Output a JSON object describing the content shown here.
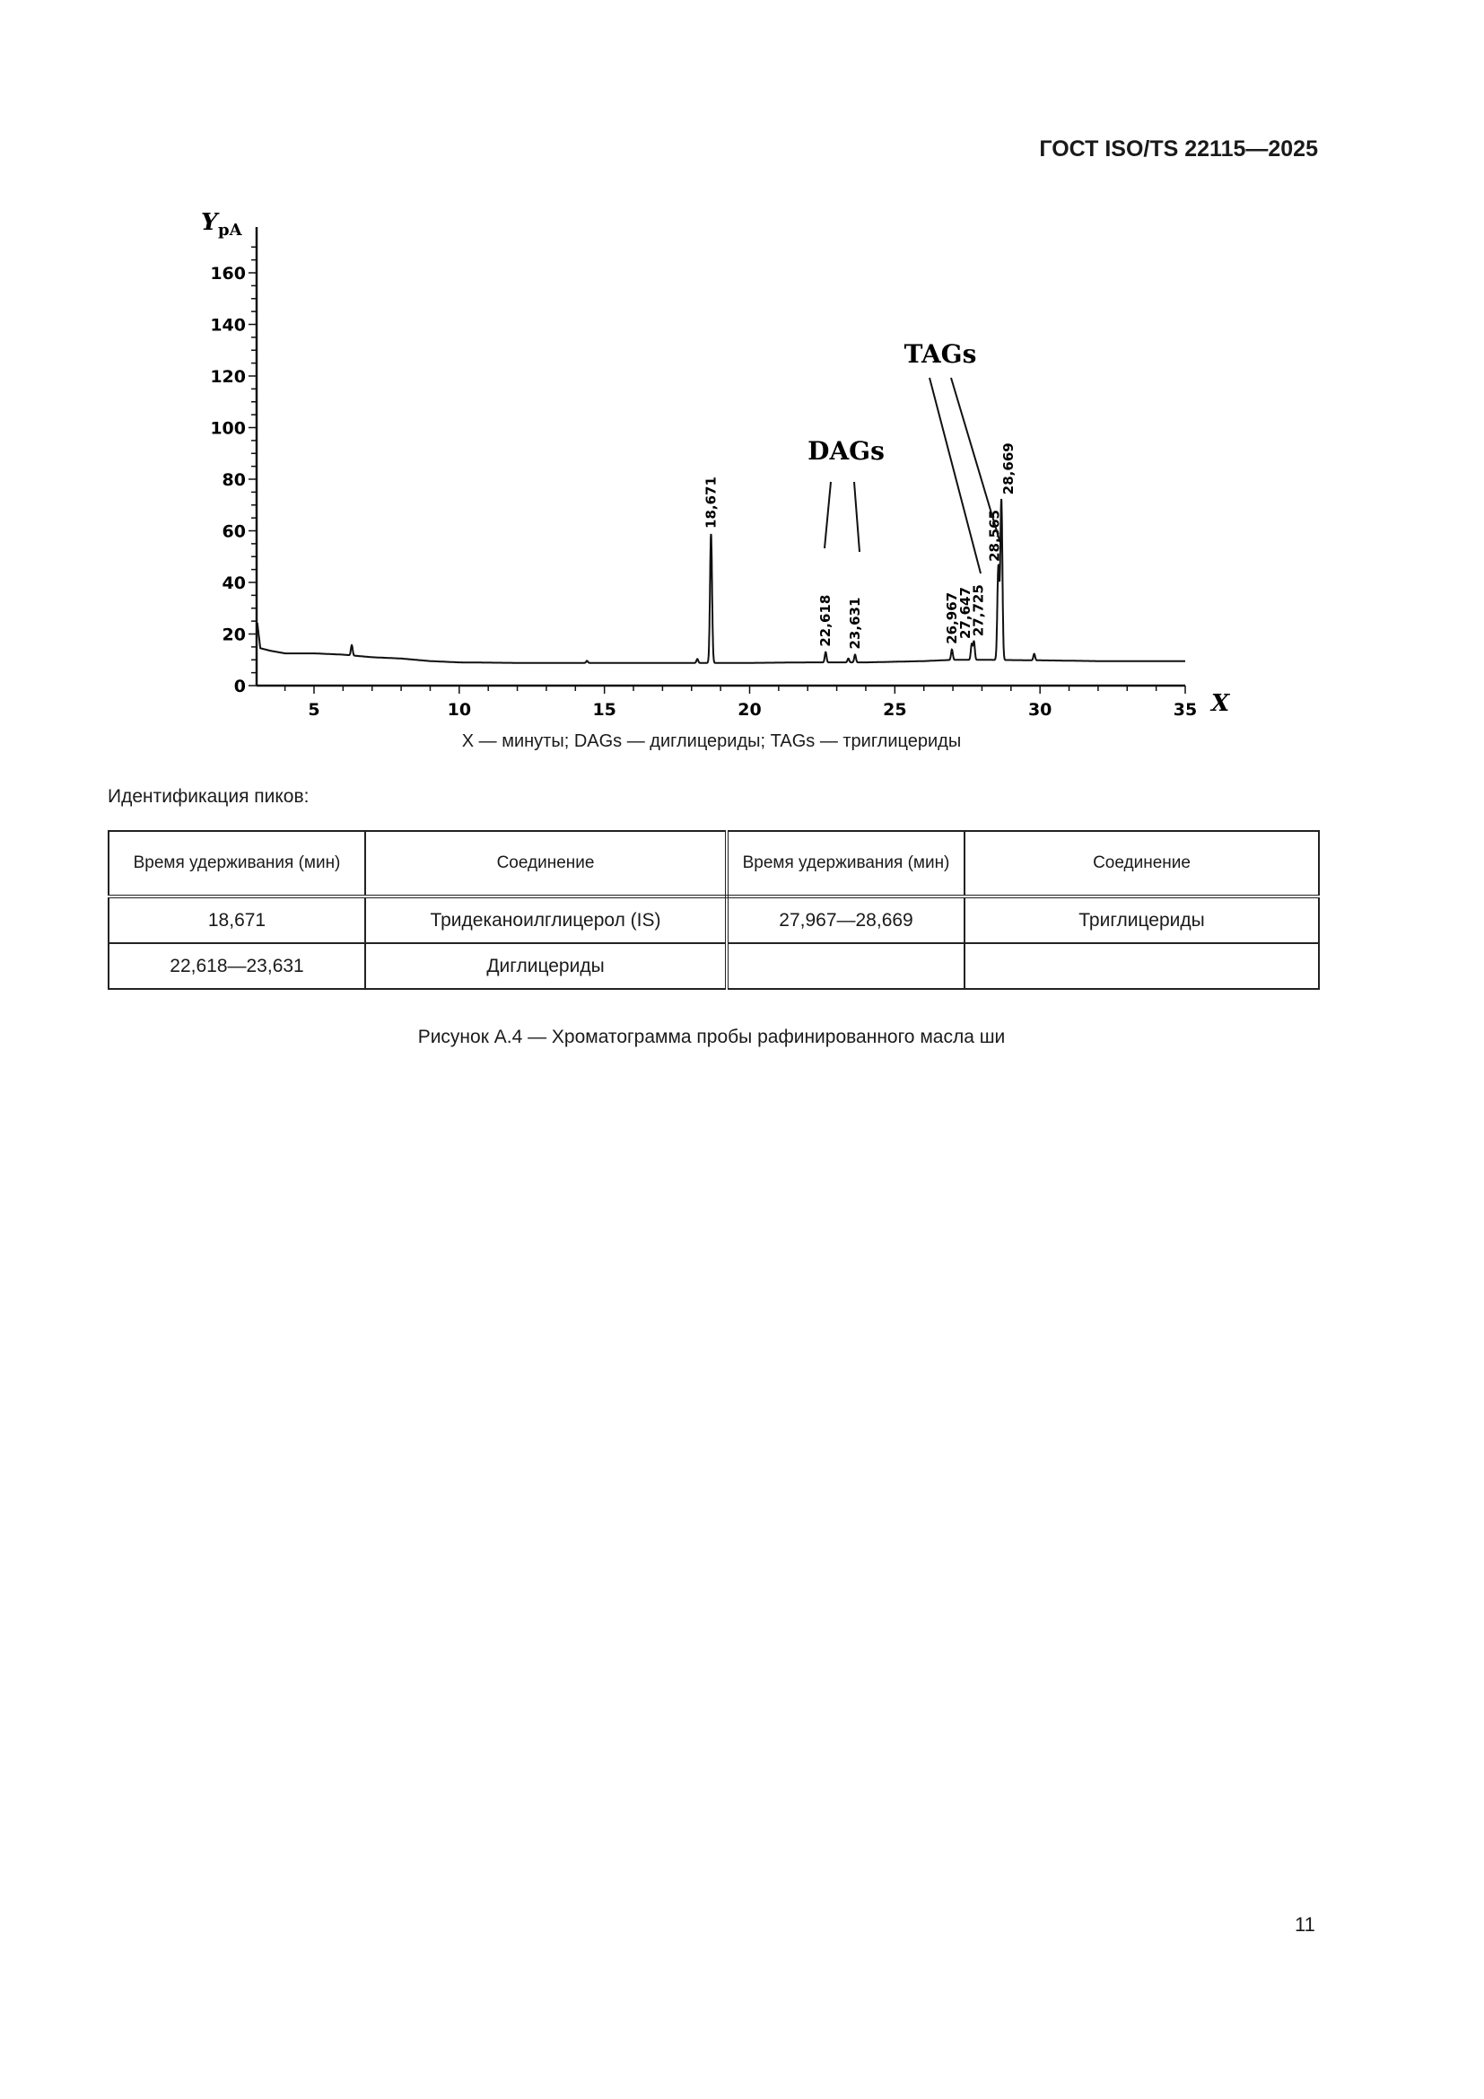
{
  "header": {
    "doc_id": "ГОСТ ISO/TS 22115—2025"
  },
  "chart_data": {
    "type": "line",
    "xlabel": "X",
    "ylabel": "Y",
    "yunit": "pA",
    "xlim": [
      3,
      35
    ],
    "ylim": [
      0,
      175
    ],
    "xticks": [
      5,
      10,
      15,
      20,
      25,
      30,
      35
    ],
    "yticks": [
      0,
      20,
      40,
      60,
      80,
      100,
      120,
      140,
      160
    ],
    "grid": false,
    "baseline": [
      [
        3.05,
        24
      ],
      [
        3.15,
        14.5
      ],
      [
        3.5,
        13.5
      ],
      [
        4,
        12.5
      ],
      [
        5,
        12.5
      ],
      [
        6,
        12
      ],
      [
        7,
        11
      ],
      [
        8,
        10.5
      ],
      [
        9,
        9.5
      ],
      [
        10,
        9
      ],
      [
        12,
        8.8
      ],
      [
        15,
        8.8
      ],
      [
        18,
        8.8
      ],
      [
        20,
        8.8
      ],
      [
        22,
        9
      ],
      [
        24,
        9
      ],
      [
        26,
        9.5
      ],
      [
        27,
        10
      ],
      [
        28,
        10
      ],
      [
        30,
        9.8
      ],
      [
        32,
        9.5
      ],
      [
        35,
        9.5
      ]
    ],
    "peaks": [
      {
        "rt": 6.3,
        "height": 4,
        "label": ""
      },
      {
        "rt": 14.4,
        "height": 0.8,
        "label": ""
      },
      {
        "rt": 18.2,
        "height": 1.5,
        "label": ""
      },
      {
        "rt": 18.671,
        "height": 50,
        "label": "18,671"
      },
      {
        "rt": 22.618,
        "height": 4,
        "label": "22,618"
      },
      {
        "rt": 23.4,
        "height": 1.5,
        "label": ""
      },
      {
        "rt": 23.631,
        "height": 3,
        "label": "23,631"
      },
      {
        "rt": 26.967,
        "height": 4,
        "label": "26,967"
      },
      {
        "rt": 27.647,
        "height": 6,
        "label": "27,647"
      },
      {
        "rt": 27.725,
        "height": 7,
        "label": "27,725"
      },
      {
        "rt": 28.565,
        "height": 36,
        "label": "28,565"
      },
      {
        "rt": 28.669,
        "height": 62,
        "label": "28,669"
      },
      {
        "rt": 29.8,
        "height": 2.5,
        "label": ""
      }
    ],
    "annotations": [
      "DAGs",
      "TAGs"
    ]
  },
  "legend_caption": "X — минуты; DAGs — диглицериды; TAGs — триглицериды",
  "ident_title": "Идентификация пиков:",
  "table": {
    "headers": [
      "Время удерживания (мин)",
      "Соединение",
      "Время удерживания (мин)",
      "Соединение"
    ],
    "rows": [
      [
        "18,671",
        "Тридеканоилглицерол (IS)",
        "27,967—28,669",
        "Триглицериды"
      ],
      [
        "22,618—23,631",
        "Диглицериды",
        "",
        ""
      ]
    ]
  },
  "figure_caption": "Рисунок А.4 — Хроматограмма пробы рафинированного масла ши",
  "page_number": "11"
}
